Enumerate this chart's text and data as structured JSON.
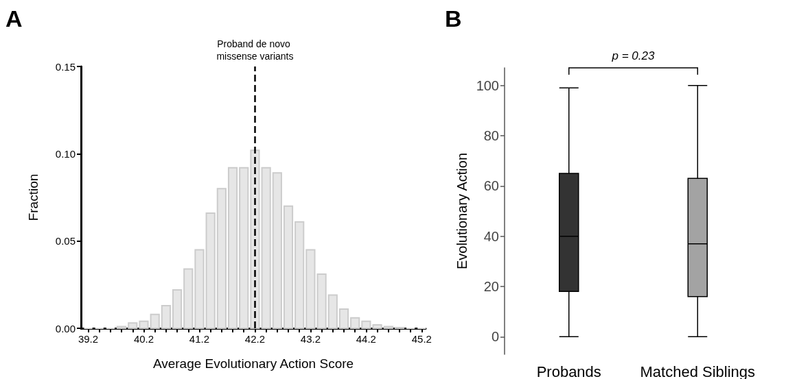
{
  "chart_data": [
    {
      "type": "histogram",
      "xlabel": "Average Evolutionary Action Score",
      "ylabel": "Fraction",
      "annotations": [
        "A"
      ],
      "bins": [
        39.1,
        39.3,
        39.5,
        39.7,
        39.9,
        40.1,
        40.3,
        40.5,
        40.7,
        40.9,
        41.1,
        41.3,
        41.5,
        41.7,
        41.9,
        42.1,
        42.3,
        42.5,
        42.7,
        42.9,
        43.1,
        43.3,
        43.5,
        43.7,
        43.9,
        44.1,
        44.3,
        44.5,
        44.7,
        44.9,
        45.1,
        45.3
      ],
      "values": [
        0,
        0,
        0,
        0.001,
        0.003,
        0.004,
        0.008,
        0.013,
        0.022,
        0.034,
        0.045,
        0.066,
        0.08,
        0.092,
        0.092,
        0.102,
        0.092,
        0.089,
        0.07,
        0.061,
        0.045,
        0.031,
        0.019,
        0.011,
        0.006,
        0.004,
        0.002,
        0.001,
        0.0004,
        0,
        0
      ],
      "color": "#e6e6e6",
      "xlim": [
        39.07,
        45.27
      ],
      "xticks": [
        39.2,
        {
          "value": 39.4,
          "label": null
        },
        {
          "value": 39.6,
          "label": null
        },
        {
          "value": 39.8,
          "label": null
        },
        {
          "value": 40,
          "label": null
        },
        40.2,
        {
          "value": 40.4,
          "label": null
        },
        {
          "value": 40.6,
          "label": null
        },
        {
          "value": 40.8,
          "label": null
        },
        {
          "value": 41,
          "label": null
        },
        41.2,
        {
          "value": 41.4,
          "label": null
        },
        {
          "value": 41.6,
          "label": null
        },
        {
          "value": 41.8,
          "label": null
        },
        {
          "value": 42,
          "label": null
        },
        42.2,
        {
          "value": 42.4,
          "label": null
        },
        {
          "value": 42.6,
          "label": null
        },
        {
          "value": 42.8,
          "label": null
        },
        {
          "value": 43,
          "label": null
        },
        43.2,
        {
          "value": 43.4,
          "label": null
        },
        {
          "value": 43.6,
          "label": null
        },
        {
          "value": 43.8,
          "label": null
        },
        {
          "value": 44,
          "label": null
        },
        44.2,
        {
          "value": 44.4,
          "label": null
        },
        {
          "value": 44.6,
          "label": null
        },
        {
          "value": 44.8,
          "label": null
        },
        {
          "value": 45,
          "label": null
        },
        45.2
      ],
      "ylim": [
        0,
        0.15
      ],
      "yticks": [
        {
          "value": 0,
          "label": "0.00"
        },
        {
          "value": 0.05,
          "label": "0.05"
        },
        {
          "value": 0.1,
          "label": "0.10"
        },
        {
          "value": 0.15,
          "label": "0.15"
        }
      ],
      "ref_lines": [
        {
          "axis": "x",
          "value": 42.2,
          "label": "Proband de novo missense variants",
          "color": "#000000",
          "line_style": "dashed"
        }
      ]
    },
    {
      "type": "box",
      "ylabel": "Evolutionary Action",
      "annotations": [
        "B",
        "p = 0.23"
      ],
      "categories": [
        "Probands",
        "Matched Siblings"
      ],
      "boxes": [
        {
          "low": 0,
          "q1": 18,
          "median": 40,
          "q3": 65,
          "high": 99
        },
        {
          "low": 0,
          "q1": 16,
          "median": 37,
          "q3": 63,
          "high": 100
        }
      ],
      "colors": [
        "#333333",
        "#a3a3a3"
      ],
      "ylim": [
        -7,
        107
      ],
      "yticks": [
        0,
        20,
        40,
        60,
        80,
        100
      ]
    }
  ]
}
